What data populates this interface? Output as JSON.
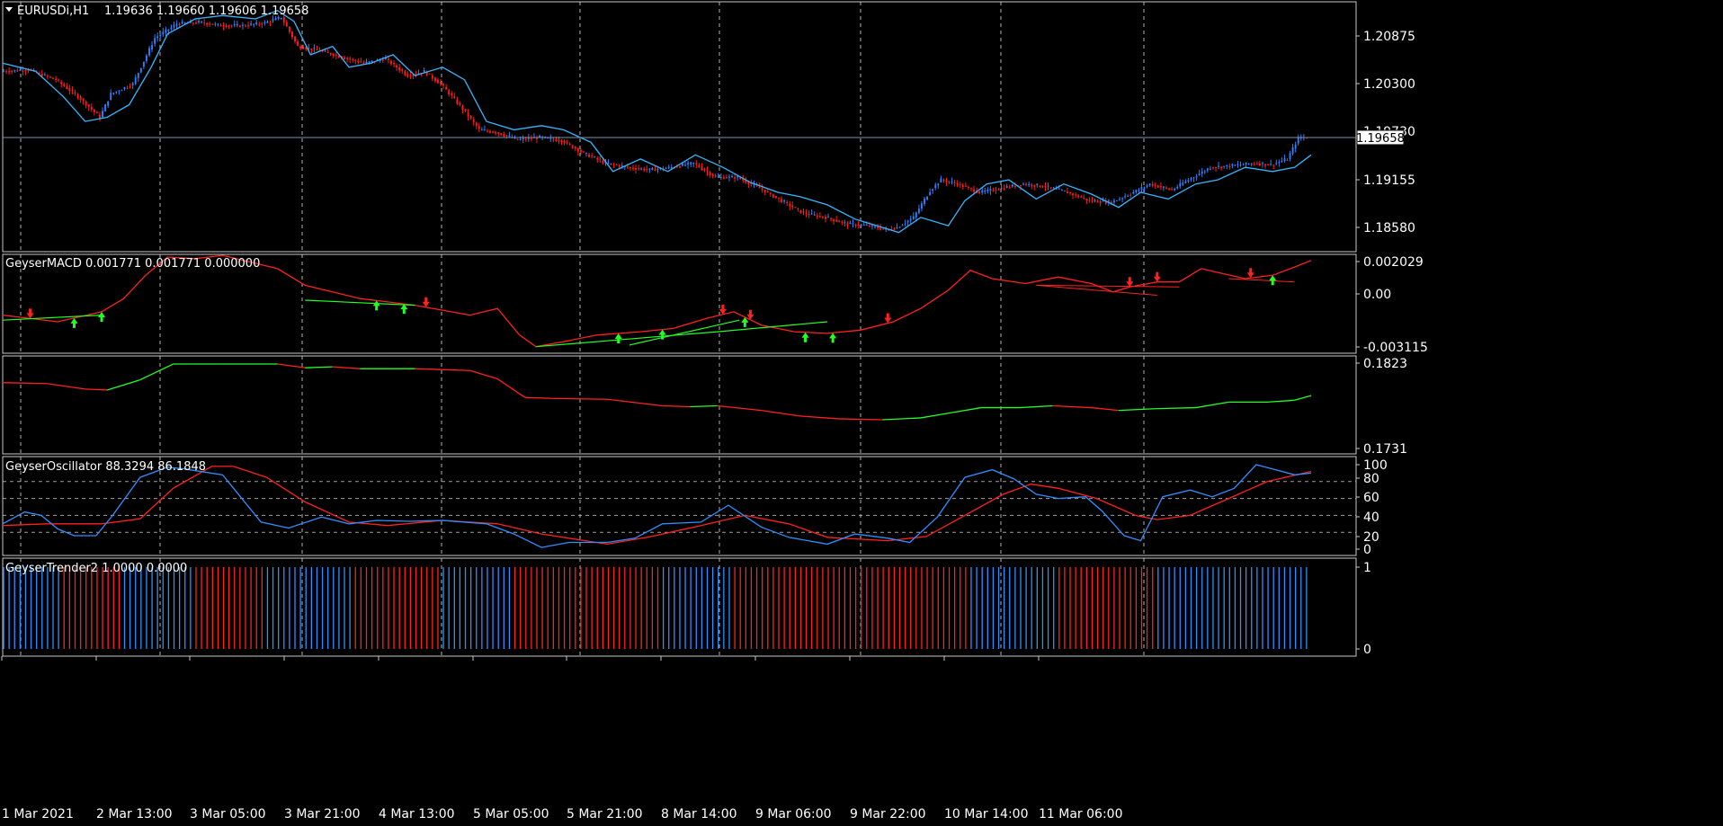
{
  "window": {
    "symbol_title": "EURUSDi,H1",
    "ohlc": "1.19636 1.19660 1.19606 1.19658",
    "current_price": "1.19658"
  },
  "colors": {
    "background": "#000000",
    "frame": "#c8c8c8",
    "grid": "#c8c8c8",
    "bull": "#2f7fff",
    "bear": "#ff1a1a",
    "channel": "#36b6ff",
    "macd_main": "#ff2020",
    "macd_signal_up": "#22ff22",
    "osc_main": "#2f8fff",
    "osc_signal": "#ff2020",
    "trend_up": "#2f8fff",
    "trend_down": "#ff2020"
  },
  "time_axis": {
    "labels": [
      "1 Mar 2021",
      "2 Mar 13:00",
      "3 Mar 05:00",
      "3 Mar 21:00",
      "4 Mar 13:00",
      "5 Mar 05:00",
      "5 Mar 21:00",
      "8 Mar 14:00",
      "9 Mar 06:00",
      "9 Mar 22:00",
      "10 Mar 14:00",
      "11 Mar 06:00"
    ]
  },
  "chart_data": [
    {
      "type": "candlestick",
      "title": "EURUSDi,H1  1.19636 1.19660 1.19606 1.19658",
      "y_ticks": [
        "1.20875",
        "1.20300",
        "1.19730",
        "1.19155",
        "1.18580"
      ],
      "ylim": [
        1.1818,
        1.2122
      ],
      "close_path": [
        [
          0,
          1.2045
        ],
        [
          10,
          1.2047
        ],
        [
          20,
          1.2035
        ],
        [
          28,
          1.2015
        ],
        [
          36,
          1.199
        ],
        [
          40,
          1.2018
        ],
        [
          48,
          1.203
        ],
        [
          56,
          1.2085
        ],
        [
          64,
          1.2102
        ],
        [
          72,
          1.2104
        ],
        [
          80,
          1.21
        ],
        [
          88,
          1.21
        ],
        [
          96,
          1.2103
        ],
        [
          102,
          1.211
        ],
        [
          108,
          1.2075
        ],
        [
          116,
          1.207
        ],
        [
          124,
          1.2062
        ],
        [
          132,
          1.2055
        ],
        [
          140,
          1.206
        ],
        [
          148,
          1.204
        ],
        [
          154,
          1.2045
        ],
        [
          160,
          1.203
        ],
        [
          168,
          1.2
        ],
        [
          174,
          1.1975
        ],
        [
          180,
          1.1972
        ],
        [
          188,
          1.1963
        ],
        [
          196,
          1.1966
        ],
        [
          204,
          1.1962
        ],
        [
          212,
          1.1947
        ],
        [
          220,
          1.1935
        ],
        [
          228,
          1.193
        ],
        [
          236,
          1.1927
        ],
        [
          244,
          1.193
        ],
        [
          252,
          1.1935
        ],
        [
          260,
          1.1918
        ],
        [
          268,
          1.1918
        ],
        [
          276,
          1.1905
        ],
        [
          284,
          1.189
        ],
        [
          292,
          1.1875
        ],
        [
          300,
          1.187
        ],
        [
          308,
          1.1862
        ],
        [
          316,
          1.186
        ],
        [
          322,
          1.1855
        ],
        [
          326,
          1.1858
        ],
        [
          332,
          1.187
        ],
        [
          338,
          1.1902
        ],
        [
          342,
          1.1915
        ],
        [
          348,
          1.191
        ],
        [
          356,
          1.19
        ],
        [
          364,
          1.1905
        ],
        [
          372,
          1.191
        ],
        [
          380,
          1.1907
        ],
        [
          388,
          1.19
        ],
        [
          396,
          1.189
        ],
        [
          404,
          1.1888
        ],
        [
          412,
          1.19
        ],
        [
          418,
          1.191
        ],
        [
          426,
          1.1903
        ],
        [
          432,
          1.1915
        ],
        [
          440,
          1.193
        ],
        [
          448,
          1.1932
        ],
        [
          456,
          1.1935
        ],
        [
          462,
          1.1933
        ],
        [
          468,
          1.194
        ],
        [
          472,
          1.1965
        ],
        [
          474,
          1.1966
        ]
      ],
      "channel_path": [
        [
          0,
          1.2055
        ],
        [
          12,
          1.2045
        ],
        [
          22,
          1.2015
        ],
        [
          30,
          1.1985
        ],
        [
          38,
          1.199
        ],
        [
          46,
          1.2005
        ],
        [
          54,
          1.205
        ],
        [
          60,
          1.209
        ],
        [
          70,
          1.2108
        ],
        [
          80,
          1.2112
        ],
        [
          92,
          1.2108
        ],
        [
          100,
          1.2118
        ],
        [
          106,
          1.2105
        ],
        [
          112,
          1.2065
        ],
        [
          120,
          1.2075
        ],
        [
          126,
          1.205
        ],
        [
          134,
          1.2055
        ],
        [
          142,
          1.2065
        ],
        [
          150,
          1.204
        ],
        [
          160,
          1.205
        ],
        [
          168,
          1.2035
        ],
        [
          176,
          1.1985
        ],
        [
          186,
          1.1975
        ],
        [
          196,
          1.198
        ],
        [
          204,
          1.1975
        ],
        [
          214,
          1.196
        ],
        [
          222,
          1.1925
        ],
        [
          232,
          1.194
        ],
        [
          242,
          1.1925
        ],
        [
          252,
          1.1945
        ],
        [
          262,
          1.193
        ],
        [
          272,
          1.1912
        ],
        [
          282,
          1.19
        ],
        [
          290,
          1.1895
        ],
        [
          300,
          1.1885
        ],
        [
          310,
          1.1868
        ],
        [
          318,
          1.186
        ],
        [
          326,
          1.1852
        ],
        [
          334,
          1.187
        ],
        [
          344,
          1.186
        ],
        [
          350,
          1.189
        ],
        [
          358,
          1.191
        ],
        [
          366,
          1.1915
        ],
        [
          376,
          1.1892
        ],
        [
          386,
          1.191
        ],
        [
          396,
          1.1898
        ],
        [
          406,
          1.1882
        ],
        [
          414,
          1.19
        ],
        [
          424,
          1.1892
        ],
        [
          434,
          1.191
        ],
        [
          442,
          1.1915
        ],
        [
          452,
          1.193
        ],
        [
          462,
          1.1925
        ],
        [
          470,
          1.193
        ],
        [
          476,
          1.1945
        ]
      ]
    },
    {
      "type": "line",
      "title": "GeyserMACD 0.001771 0.001771 0.000000",
      "y_ticks": [
        "0.002029",
        "0.00",
        "-0.003115"
      ],
      "ylim": [
        -0.0034,
        0.0024
      ],
      "main_path": [
        [
          0,
          -0.0012
        ],
        [
          20,
          -0.0016
        ],
        [
          36,
          -0.001
        ],
        [
          44,
          -0.0002
        ],
        [
          52,
          0.0012
        ],
        [
          60,
          0.0023
        ],
        [
          70,
          0.0022
        ],
        [
          80,
          0.0024
        ],
        [
          90,
          0.002
        ],
        [
          100,
          0.0016
        ],
        [
          110,
          0.0006
        ],
        [
          120,
          0.0002
        ],
        [
          130,
          -0.0002
        ],
        [
          140,
          -0.0004
        ],
        [
          150,
          -0.0006
        ],
        [
          160,
          -0.0009
        ],
        [
          170,
          -0.0012
        ],
        [
          180,
          -0.0008
        ],
        [
          188,
          -0.0024
        ],
        [
          194,
          -0.0031
        ],
        [
          204,
          -0.0028
        ],
        [
          216,
          -0.0024
        ],
        [
          232,
          -0.0022
        ],
        [
          244,
          -0.002
        ],
        [
          256,
          -0.0014
        ],
        [
          266,
          -0.001
        ],
        [
          276,
          -0.0018
        ],
        [
          288,
          -0.0022
        ],
        [
          300,
          -0.0023
        ],
        [
          312,
          -0.0021
        ],
        [
          324,
          -0.0016
        ],
        [
          334,
          -0.0008
        ],
        [
          344,
          0.0003
        ],
        [
          352,
          0.0015
        ],
        [
          360,
          0.001
        ],
        [
          372,
          0.0007
        ],
        [
          384,
          0.0011
        ],
        [
          396,
          0.0007
        ],
        [
          404,
          0.0002
        ],
        [
          410,
          0.0005
        ],
        [
          420,
          0.0008
        ],
        [
          428,
          0.0008
        ],
        [
          436,
          0.0016
        ],
        [
          444,
          0.0013
        ],
        [
          452,
          0.001
        ],
        [
          462,
          0.0012
        ],
        [
          470,
          0.0017
        ],
        [
          476,
          0.0021
        ]
      ]
    },
    {
      "type": "line",
      "title": "",
      "y_ticks": [
        "0.1823",
        "0.1731"
      ],
      "ylim": [
        0.1726,
        0.1828
      ],
      "main_path": [
        [
          0,
          0.1802
        ],
        [
          16,
          0.1801
        ],
        [
          30,
          0.1795
        ],
        [
          38,
          0.1794
        ],
        [
          50,
          0.1805
        ],
        [
          62,
          0.1822
        ],
        [
          80,
          0.1822
        ],
        [
          100,
          0.1822
        ],
        [
          110,
          0.1818
        ],
        [
          120,
          0.1819
        ],
        [
          130,
          0.1817
        ],
        [
          150,
          0.1817
        ],
        [
          170,
          0.1815
        ],
        [
          180,
          0.1806
        ],
        [
          190,
          0.1786
        ],
        [
          200,
          0.1785
        ],
        [
          220,
          0.1784
        ],
        [
          240,
          0.1777
        ],
        [
          250,
          0.1776
        ],
        [
          260,
          0.1777
        ],
        [
          276,
          0.1772
        ],
        [
          290,
          0.1766
        ],
        [
          304,
          0.1763
        ],
        [
          320,
          0.1762
        ],
        [
          334,
          0.1764
        ],
        [
          344,
          0.1769
        ],
        [
          356,
          0.1775
        ],
        [
          370,
          0.1775
        ],
        [
          382,
          0.1777
        ],
        [
          396,
          0.1775
        ],
        [
          406,
          0.1772
        ],
        [
          420,
          0.1774
        ],
        [
          434,
          0.1775
        ],
        [
          446,
          0.1781
        ],
        [
          460,
          0.1781
        ],
        [
          470,
          0.1783
        ],
        [
          476,
          0.1788
        ]
      ]
    },
    {
      "type": "line",
      "title": "GeyserOscillator 88.3294 86.1848",
      "y_ticks": [
        "100",
        "80",
        "60",
        "40",
        "20",
        "0"
      ],
      "ylim": [
        -4,
        112
      ],
      "series": [
        {
          "values": [
            [
              0,
              30
            ],
            [
              8,
              44
            ],
            [
              14,
              40
            ],
            [
              20,
              24
            ],
            [
              26,
              16
            ],
            [
              34,
              16
            ],
            [
              40,
              40
            ],
            [
              50,
              85
            ],
            [
              60,
              97
            ],
            [
              66,
              95
            ],
            [
              80,
              88
            ],
            [
              94,
              32
            ],
            [
              104,
              25
            ],
            [
              116,
              38
            ],
            [
              126,
              30
            ],
            [
              136,
              34
            ],
            [
              148,
              33
            ],
            [
              160,
              34
            ],
            [
              176,
              30
            ],
            [
              186,
              18
            ],
            [
              196,
              2
            ],
            [
              206,
              8
            ],
            [
              220,
              8
            ],
            [
              230,
              13
            ],
            [
              240,
              30
            ],
            [
              254,
              32
            ],
            [
              264,
              52
            ],
            [
              276,
              26
            ],
            [
              286,
              14
            ],
            [
              300,
              6
            ],
            [
              310,
              18
            ],
            [
              322,
              13
            ],
            [
              330,
              8
            ],
            [
              340,
              38
            ],
            [
              350,
              85
            ],
            [
              360,
              94
            ],
            [
              368,
              83
            ],
            [
              376,
              65
            ],
            [
              384,
              60
            ],
            [
              394,
              62
            ],
            [
              400,
              45
            ],
            [
              408,
              16
            ],
            [
              414,
              10
            ],
            [
              422,
              62
            ],
            [
              432,
              70
            ],
            [
              440,
              62
            ],
            [
              448,
              72
            ],
            [
              456,
              100
            ],
            [
              462,
              95
            ],
            [
              470,
              88
            ],
            [
              476,
              90
            ]
          ]
        },
        {
          "values": [
            [
              0,
              28
            ],
            [
              16,
              30
            ],
            [
              36,
              30
            ],
            [
              50,
              36
            ],
            [
              62,
              72
            ],
            [
              76,
              98
            ],
            [
              84,
              98
            ],
            [
              96,
              85
            ],
            [
              110,
              56
            ],
            [
              126,
              32
            ],
            [
              140,
              28
            ],
            [
              160,
              34
            ],
            [
              180,
              30
            ],
            [
              196,
              18
            ],
            [
              220,
              6
            ],
            [
              236,
              15
            ],
            [
              254,
              28
            ],
            [
              270,
              40
            ],
            [
              286,
              30
            ],
            [
              300,
              14
            ],
            [
              322,
              10
            ],
            [
              336,
              15
            ],
            [
              350,
              40
            ],
            [
              364,
              65
            ],
            [
              374,
              77
            ],
            [
              384,
              72
            ],
            [
              398,
              60
            ],
            [
              412,
              40
            ],
            [
              420,
              35
            ],
            [
              432,
              40
            ],
            [
              446,
              60
            ],
            [
              460,
              80
            ],
            [
              476,
              92
            ]
          ]
        }
      ]
    },
    {
      "type": "histogram",
      "title": "GeyserTrender2 1.0000 0.0000",
      "y_ticks": [
        "1",
        "0"
      ],
      "ylim": [
        0,
        1
      ],
      "segments": [
        [
          0,
          22,
          "up"
        ],
        [
          22,
          44,
          "down"
        ],
        [
          44,
          70,
          "up"
        ],
        [
          70,
          96,
          "down"
        ],
        [
          96,
          128,
          "up"
        ],
        [
          128,
          160,
          "down"
        ],
        [
          160,
          186,
          "up"
        ],
        [
          186,
          240,
          "down"
        ],
        [
          240,
          266,
          "up"
        ],
        [
          266,
          312,
          "down"
        ],
        [
          312,
          352,
          "down"
        ],
        [
          352,
          384,
          "up"
        ],
        [
          384,
          420,
          "down"
        ],
        [
          420,
          456,
          "up"
        ],
        [
          456,
          476,
          "up"
        ]
      ]
    }
  ]
}
